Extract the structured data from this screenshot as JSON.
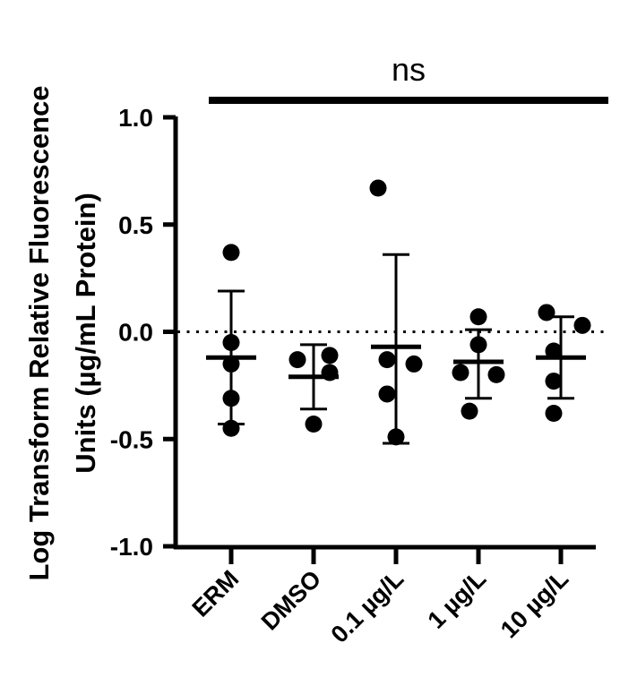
{
  "chart_data": {
    "type": "scatter",
    "title": "",
    "xlabel": "",
    "ylabel_line1": "Log Transform Relative Fluorescence",
    "ylabel_line2": "Units (µg/mL Protein)",
    "ylim": [
      -1.0,
      1.0
    ],
    "yticks": [
      1.0,
      0.5,
      0.0,
      -0.5,
      -1.0
    ],
    "ytick_labels": [
      "1.0",
      "0.5",
      "0.0",
      "-0.5",
      "-1.0"
    ],
    "reference_line": 0.0,
    "categories": [
      "ERM",
      "DMSO",
      "0.1 µg/L",
      "1 µg/L",
      "10 µg/L"
    ],
    "groups": [
      {
        "name": "ERM",
        "points": [
          0.37,
          -0.05,
          -0.15,
          -0.31,
          -0.45
        ],
        "mean": -0.12,
        "sd_upper": 0.19,
        "sd_lower": -0.43
      },
      {
        "name": "DMSO",
        "points": [
          -0.13,
          -0.11,
          -0.19,
          -0.43
        ],
        "mean": -0.21,
        "sd_upper": -0.06,
        "sd_lower": -0.36
      },
      {
        "name": "0.1 µg/L",
        "points": [
          0.67,
          -0.15,
          -0.13,
          -0.29,
          -0.49
        ],
        "mean": -0.07,
        "sd_upper": 0.36,
        "sd_lower": -0.52
      },
      {
        "name": "1 µg/L",
        "points": [
          0.07,
          -0.06,
          -0.19,
          -0.2,
          -0.37
        ],
        "mean": -0.14,
        "sd_upper": 0.01,
        "sd_lower": -0.31
      },
      {
        "name": "10 µg/L",
        "points": [
          0.09,
          0.03,
          -0.09,
          -0.23,
          -0.38
        ],
        "mean": -0.12,
        "sd_upper": 0.07,
        "sd_lower": -0.31
      }
    ],
    "significance": {
      "label": "ns"
    }
  }
}
